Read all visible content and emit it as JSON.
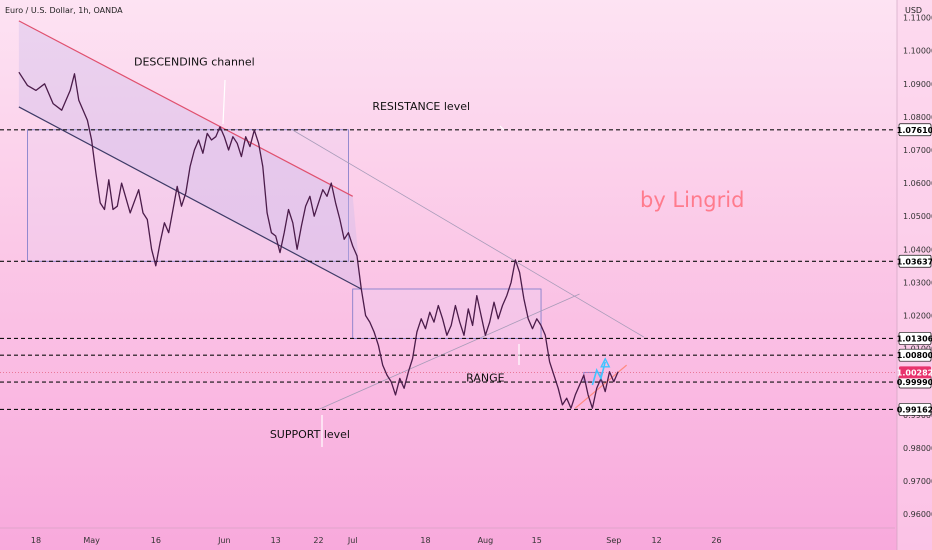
{
  "header": {
    "title": "Euro / U.S. Dollar, 1h, OANDA",
    "currency": "USD"
  },
  "watermark": "by Lingrid",
  "chart_data": {
    "type": "line",
    "symbol": "Euro / U.S. Dollar",
    "interval": "1h",
    "source": "OANDA",
    "ylim": [
      0.9558,
      1.1153
    ],
    "y_ticks": [
      {
        "value": 1.11,
        "label": "1.11000"
      },
      {
        "value": 1.1,
        "label": "1.10000"
      },
      {
        "value": 1.09,
        "label": "1.09000"
      },
      {
        "value": 1.08,
        "label": "1.08000"
      },
      {
        "value": 1.07,
        "label": "1.07000"
      },
      {
        "value": 1.06,
        "label": "1.06000"
      },
      {
        "value": 1.05,
        "label": "1.05000"
      },
      {
        "value": 1.04,
        "label": "1.04000"
      },
      {
        "value": 1.03,
        "label": "1.03000"
      },
      {
        "value": 1.02,
        "label": "1.02000"
      },
      {
        "value": 1.01,
        "label": "1.01000"
      },
      {
        "value": 1.0,
        "label": "1.00000"
      },
      {
        "value": 0.99,
        "label": "0.99000"
      },
      {
        "value": 0.98,
        "label": "0.98000"
      },
      {
        "value": 0.97,
        "label": "0.97000"
      },
      {
        "value": 0.96,
        "label": "0.96000"
      }
    ],
    "x_ticks": [
      {
        "t": 0,
        "label": "18"
      },
      {
        "t": 13,
        "label": "May"
      },
      {
        "t": 28,
        "label": "16"
      },
      {
        "t": 44,
        "label": "Jun"
      },
      {
        "t": 56,
        "label": "13"
      },
      {
        "t": 66,
        "label": "22"
      },
      {
        "t": 74,
        "label": "Jul"
      },
      {
        "t": 91,
        "label": "18"
      },
      {
        "t": 105,
        "label": "Aug"
      },
      {
        "t": 117,
        "label": "15"
      },
      {
        "t": 135,
        "label": "Sep"
      },
      {
        "t": 145,
        "label": "12"
      },
      {
        "t": 159,
        "label": "26"
      }
    ],
    "series": [
      {
        "values": [
          [
            -4,
            1.0935
          ],
          [
            -2,
            1.0895
          ],
          [
            0,
            1.088
          ],
          [
            2,
            1.09
          ],
          [
            4,
            1.084
          ],
          [
            6,
            1.082
          ],
          [
            8,
            1.088
          ],
          [
            9,
            1.093
          ],
          [
            10,
            1.085
          ],
          [
            12,
            1.079
          ],
          [
            13,
            1.073
          ],
          [
            14,
            1.063
          ],
          [
            15,
            1.054
          ],
          [
            16,
            1.052
          ],
          [
            17,
            1.061
          ],
          [
            18,
            1.052
          ],
          [
            19,
            1.053
          ],
          [
            20,
            1.06
          ],
          [
            22,
            1.051
          ],
          [
            24,
            1.058
          ],
          [
            25,
            1.051
          ],
          [
            26,
            1.049
          ],
          [
            27,
            1.04
          ],
          [
            28,
            1.035
          ],
          [
            29,
            1.042
          ],
          [
            30,
            1.048
          ],
          [
            31,
            1.045
          ],
          [
            32,
            1.052
          ],
          [
            33,
            1.059
          ],
          [
            34,
            1.053
          ],
          [
            35,
            1.057
          ],
          [
            36,
            1.065
          ],
          [
            37,
            1.07
          ],
          [
            38,
            1.073
          ],
          [
            39,
            1.069
          ],
          [
            40,
            1.075
          ],
          [
            41,
            1.073
          ],
          [
            42,
            1.074
          ],
          [
            43,
            1.077
          ],
          [
            44,
            1.074
          ],
          [
            45,
            1.07
          ],
          [
            46,
            1.074
          ],
          [
            47,
            1.072
          ],
          [
            48,
            1.068
          ],
          [
            49,
            1.074
          ],
          [
            50,
            1.071
          ],
          [
            51,
            1.076
          ],
          [
            52,
            1.072
          ],
          [
            53,
            1.065
          ],
          [
            54,
            1.051
          ],
          [
            55,
            1.045
          ],
          [
            56,
            1.044
          ],
          [
            57,
            1.039
          ],
          [
            58,
            1.045
          ],
          [
            59,
            1.052
          ],
          [
            60,
            1.048
          ],
          [
            61,
            1.04
          ],
          [
            62,
            1.047
          ],
          [
            63,
            1.053
          ],
          [
            64,
            1.056
          ],
          [
            65,
            1.05
          ],
          [
            66,
            1.054
          ],
          [
            67,
            1.058
          ],
          [
            68,
            1.056
          ],
          [
            69,
            1.06
          ],
          [
            70,
            1.054
          ],
          [
            71,
            1.049
          ],
          [
            72,
            1.043
          ],
          [
            73,
            1.045
          ],
          [
            74,
            1.041
          ],
          [
            75,
            1.038
          ],
          [
            76,
            1.028
          ],
          [
            77,
            1.02
          ],
          [
            78,
            1.018
          ],
          [
            79,
            1.015
          ],
          [
            80,
            1.011
          ],
          [
            81,
            1.005
          ],
          [
            82,
            1.002
          ],
          [
            83,
            1.0
          ],
          [
            84,
            0.996
          ],
          [
            85,
            1.001
          ],
          [
            86,
            0.998
          ],
          [
            87,
            1.003
          ],
          [
            88,
            1.007
          ],
          [
            89,
            1.015
          ],
          [
            90,
            1.019
          ],
          [
            91,
            1.016
          ],
          [
            92,
            1.021
          ],
          [
            93,
            1.018
          ],
          [
            94,
            1.023
          ],
          [
            95,
            1.019
          ],
          [
            96,
            1.014
          ],
          [
            97,
            1.017
          ],
          [
            98,
            1.023
          ],
          [
            99,
            1.018
          ],
          [
            100,
            1.014
          ],
          [
            101,
            1.022
          ],
          [
            102,
            1.017
          ],
          [
            103,
            1.026
          ],
          [
            104,
            1.02
          ],
          [
            105,
            1.014
          ],
          [
            106,
            1.018
          ],
          [
            107,
            1.024
          ],
          [
            108,
            1.019
          ],
          [
            109,
            1.023
          ],
          [
            110,
            1.026
          ],
          [
            111,
            1.03
          ],
          [
            112,
            1.0368
          ],
          [
            113,
            1.033
          ],
          [
            114,
            1.025
          ],
          [
            115,
            1.019
          ],
          [
            116,
            1.016
          ],
          [
            117,
            1.019
          ],
          [
            118,
            1.017
          ],
          [
            119,
            1.014
          ],
          [
            120,
            1.006
          ],
          [
            121,
            1.002
          ],
          [
            122,
            0.998
          ],
          [
            123,
            0.993
          ],
          [
            124,
            0.995
          ],
          [
            125,
            0.992
          ],
          [
            126,
            0.996
          ],
          [
            127,
            0.999
          ],
          [
            128,
            1.002
          ],
          [
            129,
            0.996
          ],
          [
            130,
            0.992
          ],
          [
            131,
            0.998
          ],
          [
            132,
            1.001
          ],
          [
            133,
            0.997
          ],
          [
            134,
            1.003
          ],
          [
            135,
            1.0
          ],
          [
            136,
            1.003
          ]
        ]
      }
    ],
    "levels": [
      {
        "value": 1.0761,
        "label": "1.07610"
      },
      {
        "value": 1.03637,
        "label": "1.03637"
      },
      {
        "value": 1.01306,
        "label": "1.01306"
      },
      {
        "value": 1.008,
        "label": "1.00800"
      },
      {
        "value": 0.9999,
        "label": "0.99990"
      },
      {
        "value": 0.99162,
        "label": "0.99162"
      }
    ],
    "current_price": {
      "value": 1.00282,
      "label": "1.00282"
    },
    "annotations": [
      {
        "label": "DESCENDING channel",
        "t": 37,
        "value": 1.0955
      },
      {
        "label": "RESISTANCE level",
        "t": 90,
        "value": 1.082
      },
      {
        "label": "RANGE",
        "t": 105,
        "value": 1.0
      },
      {
        "label": "SUPPORT level",
        "t": 64,
        "value": 0.983
      }
    ],
    "descending_channel": {
      "upper": [
        [
          -4,
          1.109
        ],
        [
          74,
          1.056
        ]
      ],
      "lower": [
        [
          -4,
          1.083
        ],
        [
          76,
          1.028
        ]
      ]
    },
    "boxes": [
      {
        "t1": -2,
        "t2": 73,
        "v1": 1.03637,
        "v2": 1.0761
      },
      {
        "t1": 74,
        "t2": 118,
        "v1": 1.01306,
        "v2": 1.028
      },
      {
        "t1": 128,
        "t2": 132,
        "v1": 0.9999,
        "v2": 1.00282
      }
    ],
    "trendlines": [
      {
        "from": [
          60,
          1.076
        ],
        "to": [
          142,
          1.0135
        ]
      },
      {
        "from": [
          66,
          0.9916
        ],
        "to": [
          127,
          1.0265
        ]
      },
      {
        "from": [
          126,
          0.992
        ],
        "to": [
          138,
          1.005
        ]
      }
    ],
    "projection": [
      [
        130,
        0.999
      ],
      [
        131,
        1.0035
      ],
      [
        132,
        1.001
      ],
      [
        133,
        1.006
      ]
    ]
  }
}
